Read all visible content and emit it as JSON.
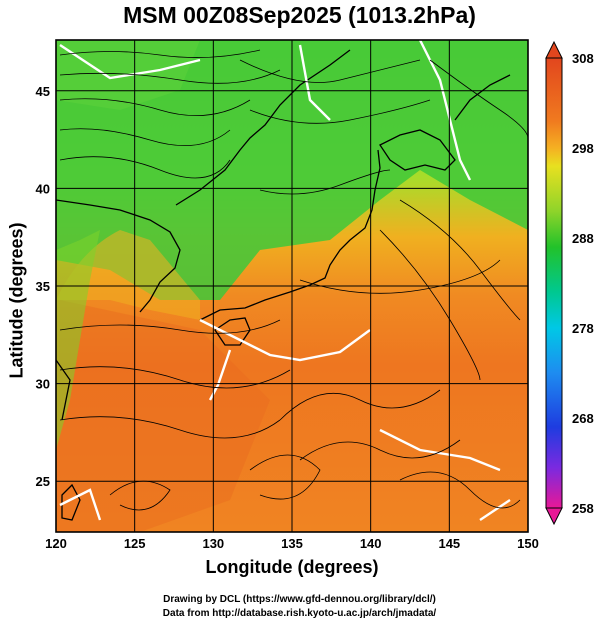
{
  "title": "MSM 00Z08Sep2025 (1013.2hPa)",
  "xlabel": "Longitude (degrees)",
  "ylabel": "Latitude  (degrees)",
  "credits": {
    "line1": "Drawing by DCL (https://www.gfd-dennou.org/library/dcl/)",
    "line2": "Data from http://database.rish.kyoto-u.ac.jp/arch/jmadata/"
  },
  "map": {
    "lon_range": [
      120,
      150
    ],
    "lat_range": [
      22.4,
      47.6
    ],
    "lon_ticks": [
      "120",
      "125",
      "130",
      "135",
      "140",
      "145",
      "150"
    ],
    "lat_ticks": [
      "25",
      "30",
      "35",
      "40",
      "45"
    ],
    "field": "temperature (K) with surface wind streamlines"
  },
  "colorbar": {
    "min": 258,
    "max": 308,
    "tick_labels": [
      "308",
      "298",
      "288",
      "278",
      "268",
      "258"
    ],
    "colors": [
      "#e8188c",
      "#8a2be2",
      "#1e3fe0",
      "#1e90ff",
      "#00c8e0",
      "#00d070",
      "#22c022",
      "#7ed321",
      "#e8e020",
      "#f5a623",
      "#f07018",
      "#e03a20"
    ]
  },
  "colors": {
    "frame": "#000000",
    "contour": "#ffffff",
    "streamline": "#000000"
  }
}
